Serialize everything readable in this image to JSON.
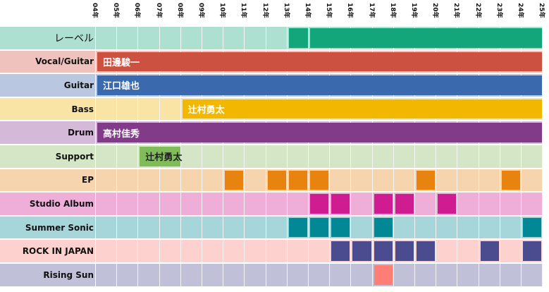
{
  "chart_data": {
    "type": "table",
    "years": [
      "04年",
      "05年",
      "06年",
      "07年",
      "08年",
      "09年",
      "10年",
      "11年",
      "12年",
      "13年",
      "14年",
      "15年",
      "16年",
      "17年",
      "18年",
      "19年",
      "20年",
      "21年",
      "22年",
      "23年",
      "24年",
      "25年"
    ],
    "rows": [
      {
        "label": "レーベル",
        "light": "#aee0d2",
        "dark": "#14a67b",
        "big": true,
        "bars": [
          {
            "from": "13年",
            "to": "13年",
            "text": ""
          },
          {
            "from": "14年",
            "to": "24年",
            "text": ""
          }
        ]
      },
      {
        "label": "Vocal/Guitar",
        "light": "#efc2bd",
        "dark": "#cc5140",
        "bars": [
          {
            "from": "04年",
            "to": "24年",
            "text": "田邊駿一"
          }
        ]
      },
      {
        "label": "Guitar",
        "light": "#b9c8e0",
        "dark": "#3a6aad",
        "bars": [
          {
            "from": "04年",
            "to": "24年",
            "text": "江口雄也"
          }
        ]
      },
      {
        "label": "Bass",
        "light": "#f9e4a6",
        "dark": "#f2b700",
        "bars": [
          {
            "from": "08年",
            "to": "24年",
            "text": "辻村勇太"
          }
        ]
      },
      {
        "label": "Drum",
        "light": "#d5b9d8",
        "dark": "#813b89",
        "bars": [
          {
            "from": "04年",
            "to": "24年",
            "text": "高村佳秀"
          }
        ]
      },
      {
        "label": "Support",
        "light": "#d4e6c6",
        "dark": "#80bd5a",
        "textColor": "#222",
        "bars": [
          {
            "from": "06年",
            "to": "07年",
            "text": "辻村勇太"
          }
        ]
      },
      {
        "label": "EP",
        "light": "#f6d4ae",
        "dark": "#e8830f",
        "cells": [
          "10年",
          "12年",
          "13年",
          "14年",
          "19年",
          "23年"
        ]
      },
      {
        "label": "Studio Album",
        "light": "#eeaed8",
        "dark": "#cf1c90",
        "cells": [
          "14年",
          "15年",
          "17年",
          "18年",
          "20年"
        ]
      },
      {
        "label": "Summer Sonic",
        "light": "#a7d6da",
        "dark": "#028794",
        "cells": [
          "13年",
          "14年",
          "15年",
          "17年",
          "24年"
        ]
      },
      {
        "label": "ROCK IN JAPAN",
        "light": "#fdd1cd",
        "dark": "#4b4b8f",
        "cells": [
          "15年",
          "16年",
          "17年",
          "18年",
          "19年",
          "22年",
          "24年"
        ]
      },
      {
        "label": "Rising Sun",
        "light": "#c0c0d8",
        "dark": "#fe7e75",
        "cells": [
          "17年"
        ]
      }
    ]
  }
}
